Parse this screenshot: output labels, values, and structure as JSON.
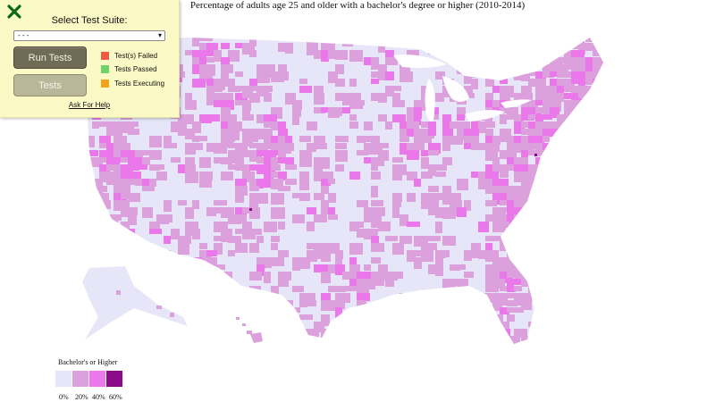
{
  "map": {
    "title": "Percentage of adults age 25 and older with a bachelor's degree or higher (2010-2014)"
  },
  "panel": {
    "close_icon": "close-x-icon",
    "suite_label": "Select Test Suite:",
    "suite_selected": "- - -",
    "run_label": "Run Tests",
    "tests_label": "Tests",
    "statuses": [
      {
        "label": "Test(s) Failed",
        "color": "#ef5a42"
      },
      {
        "label": "Tests Passed",
        "color": "#6dd36b"
      },
      {
        "label": "Tests Executing",
        "color": "#f5a21b"
      }
    ],
    "help_label": "Ask For Help"
  },
  "legend": {
    "title": "Bachelor's or Higher",
    "bins": [
      {
        "label": "0%",
        "color": "#e6e6f8"
      },
      {
        "label": "20%",
        "color": "#dca0dc"
      },
      {
        "label": "40%",
        "color": "#ea78ea"
      },
      {
        "label": "60%",
        "color": "#8a0a8a"
      }
    ]
  }
}
